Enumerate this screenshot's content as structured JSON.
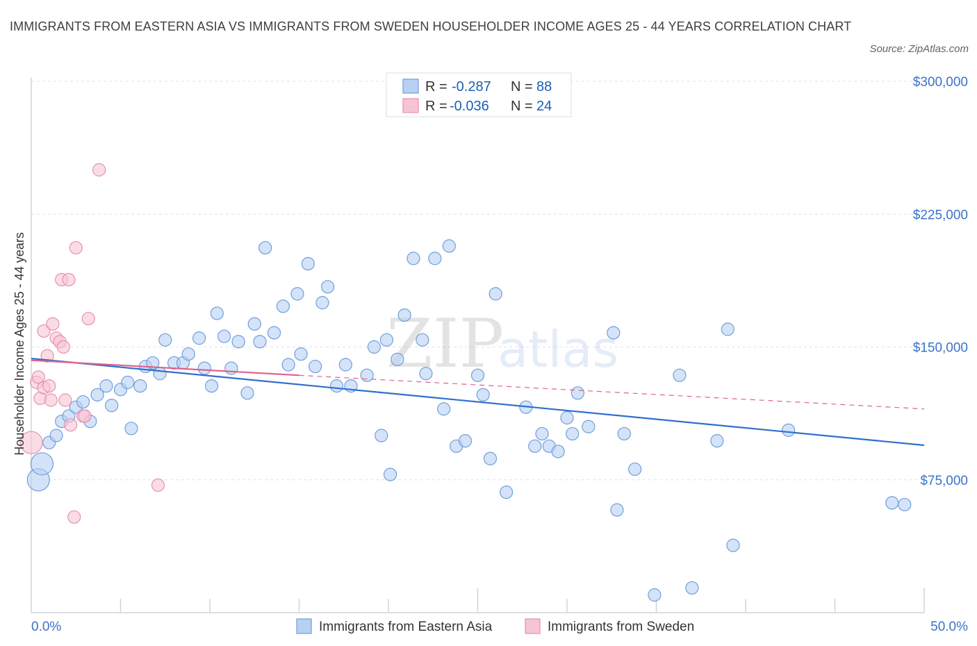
{
  "title": "IMMIGRANTS FROM EASTERN ASIA VS IMMIGRANTS FROM SWEDEN HOUSEHOLDER INCOME AGES 25 - 44 YEARS CORRELATION CHART",
  "source": "Source: ZipAtlas.com",
  "watermark": {
    "zip": "ZIP",
    "atlas": "atlas"
  },
  "legend": {
    "rows": [
      {
        "r_label": "R =",
        "r_value": "-0.287",
        "n_label": "N =",
        "n_value": "88"
      },
      {
        "r_label": "R =",
        "r_value": "-0.036",
        "n_label": "N =",
        "n_value": "24"
      }
    ]
  },
  "bottom_legend": [
    "Immigrants from Eastern Asia",
    "Immigrants from Sweden"
  ],
  "colors": {
    "blue_fill": "#b8d0f4",
    "blue_stroke": "#6f9edc",
    "blue_line": "#2f6fcc",
    "pink_fill": "#f7c4d6",
    "pink_stroke": "#e691ae",
    "pink_line": "#e0608c",
    "tick_text": "#3a72c8",
    "grid": "#dfe3e8"
  },
  "chart_data": {
    "type": "scatter",
    "title": "IMMIGRANTS FROM EASTERN ASIA VS IMMIGRANTS FROM SWEDEN HOUSEHOLDER INCOME AGES 25 - 44 YEARS CORRELATION CHART",
    "xlabel": "",
    "ylabel": "Householder Income Ages 25 - 44 years",
    "xlim": [
      0,
      50
    ],
    "ylim": [
      0,
      300000
    ],
    "x_tick_labels": [
      "0.0%",
      "50.0%"
    ],
    "y_ticks": [
      75000,
      150000,
      225000,
      300000
    ],
    "y_tick_labels": [
      "$75,000",
      "$150,000",
      "$225,000",
      "$300,000"
    ],
    "grid": true,
    "legend_position": "top-center",
    "series": [
      {
        "name": "Immigrants from Eastern Asia",
        "r": -0.287,
        "n": 88,
        "trend": {
          "x": [
            0,
            50
          ],
          "y": [
            143500,
            94500
          ]
        },
        "points": [
          [
            0.4,
            75000
          ],
          [
            0.6,
            84000
          ],
          [
            1.0,
            96000
          ],
          [
            1.4,
            100000
          ],
          [
            1.7,
            108000
          ],
          [
            2.1,
            111000
          ],
          [
            2.5,
            116000
          ],
          [
            2.9,
            119000
          ],
          [
            3.3,
            108000
          ],
          [
            3.7,
            123000
          ],
          [
            4.2,
            128000
          ],
          [
            4.5,
            117000
          ],
          [
            5.0,
            126000
          ],
          [
            5.4,
            130000
          ],
          [
            5.6,
            104000
          ],
          [
            6.1,
            128000
          ],
          [
            6.4,
            139000
          ],
          [
            6.8,
            141000
          ],
          [
            7.2,
            135000
          ],
          [
            7.5,
            154000
          ],
          [
            8.0,
            141000
          ],
          [
            8.5,
            141000
          ],
          [
            8.8,
            146000
          ],
          [
            9.4,
            155000
          ],
          [
            9.7,
            138000
          ],
          [
            10.1,
            128000
          ],
          [
            10.4,
            169000
          ],
          [
            10.8,
            156000
          ],
          [
            11.2,
            138000
          ],
          [
            11.6,
            153000
          ],
          [
            12.1,
            124000
          ],
          [
            12.5,
            163000
          ],
          [
            12.8,
            153000
          ],
          [
            13.1,
            206000
          ],
          [
            13.6,
            158000
          ],
          [
            14.1,
            173000
          ],
          [
            14.4,
            140000
          ],
          [
            14.9,
            180000
          ],
          [
            15.1,
            146000
          ],
          [
            15.5,
            197000
          ],
          [
            15.9,
            139000
          ],
          [
            16.3,
            175000
          ],
          [
            16.6,
            184000
          ],
          [
            17.1,
            128000
          ],
          [
            17.6,
            140000
          ],
          [
            17.9,
            128000
          ],
          [
            18.8,
            134000
          ],
          [
            19.2,
            150000
          ],
          [
            19.6,
            100000
          ],
          [
            19.9,
            154000
          ],
          [
            20.1,
            78000
          ],
          [
            20.5,
            143000
          ],
          [
            20.9,
            168000
          ],
          [
            21.4,
            200000
          ],
          [
            21.9,
            154000
          ],
          [
            22.1,
            135000
          ],
          [
            22.6,
            200000
          ],
          [
            23.1,
            115000
          ],
          [
            23.4,
            207000
          ],
          [
            23.8,
            94000
          ],
          [
            24.3,
            97000
          ],
          [
            25.0,
            134000
          ],
          [
            25.3,
            123000
          ],
          [
            25.7,
            87000
          ],
          [
            26.0,
            180000
          ],
          [
            26.6,
            68000
          ],
          [
            27.7,
            116000
          ],
          [
            28.2,
            94000
          ],
          [
            28.6,
            101000
          ],
          [
            29.0,
            94000
          ],
          [
            29.5,
            91000
          ],
          [
            30.0,
            110000
          ],
          [
            30.3,
            101000
          ],
          [
            30.6,
            124000
          ],
          [
            31.2,
            105000
          ],
          [
            32.6,
            158000
          ],
          [
            32.8,
            58000
          ],
          [
            33.2,
            101000
          ],
          [
            33.8,
            81000
          ],
          [
            34.9,
            10000
          ],
          [
            36.3,
            134000
          ],
          [
            37.0,
            14000
          ],
          [
            38.4,
            97000
          ],
          [
            39.0,
            160000
          ],
          [
            39.3,
            38000
          ],
          [
            42.4,
            103000
          ],
          [
            48.2,
            62000
          ],
          [
            48.9,
            61000
          ]
        ]
      },
      {
        "name": "Immigrants from Sweden",
        "r": -0.036,
        "n": 24,
        "trend": {
          "x": [
            0,
            15
          ],
          "y": [
            142500,
            134000
          ]
        },
        "trend_extended": {
          "x": [
            15,
            50
          ],
          "y": [
            134000,
            115000
          ]
        },
        "points": [
          [
            0.0,
            96000
          ],
          [
            0.3,
            130000
          ],
          [
            0.4,
            133000
          ],
          [
            0.5,
            121000
          ],
          [
            0.7,
            127000
          ],
          [
            0.7,
            159000
          ],
          [
            0.9,
            145000
          ],
          [
            1.0,
            128000
          ],
          [
            1.1,
            120000
          ],
          [
            1.2,
            163000
          ],
          [
            1.4,
            155000
          ],
          [
            1.6,
            153000
          ],
          [
            1.7,
            188000
          ],
          [
            1.8,
            150000
          ],
          [
            1.9,
            120000
          ],
          [
            2.1,
            188000
          ],
          [
            2.2,
            106000
          ],
          [
            2.4,
            54000
          ],
          [
            2.5,
            206000
          ],
          [
            2.9,
            111000
          ],
          [
            3.0,
            111000
          ],
          [
            3.2,
            166000
          ],
          [
            3.8,
            250000
          ],
          [
            7.1,
            72000
          ]
        ]
      }
    ]
  }
}
